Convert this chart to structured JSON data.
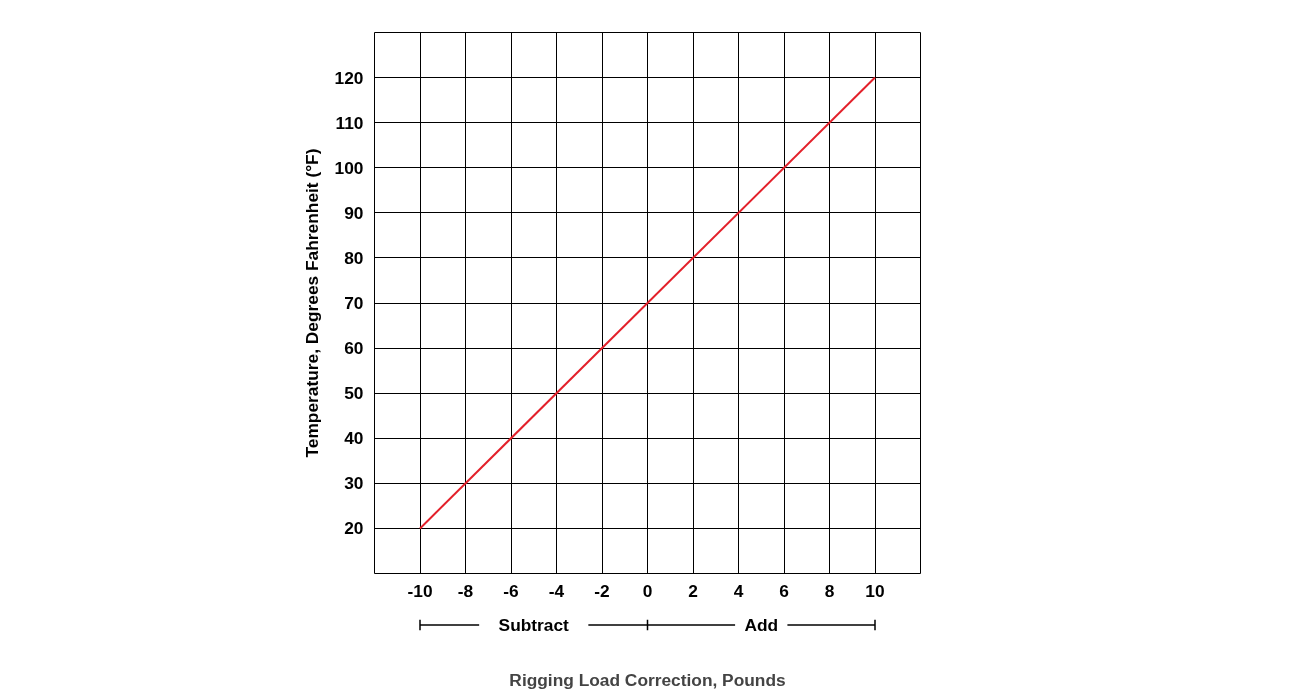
{
  "chart_data": {
    "type": "line",
    "xlabel": "Rigging Load Correction, Pounds",
    "ylabel": "Temperature, Degrees Fahrenheit (°F)",
    "x": [
      -10,
      10
    ],
    "series": [
      {
        "color": "#e3202a",
        "values": [
          20,
          120
        ]
      }
    ],
    "xlim": [
      -12,
      12
    ],
    "ylim": [
      10,
      130
    ],
    "xticks": [
      {
        "value": -10,
        "label": "-10"
      },
      {
        "value": -8,
        "label": "-8"
      },
      {
        "value": -6,
        "label": "-6"
      },
      {
        "value": -4,
        "label": "-4"
      },
      {
        "value": -2,
        "label": "-2"
      },
      0,
      2,
      4,
      6,
      8,
      10
    ],
    "yticks": [
      20,
      30,
      40,
      50,
      60,
      70,
      80,
      90,
      100,
      110,
      120
    ],
    "grid": true,
    "marker": "none",
    "line_style": "solid",
    "annotations": [
      "Subtract",
      "Add"
    ]
  }
}
